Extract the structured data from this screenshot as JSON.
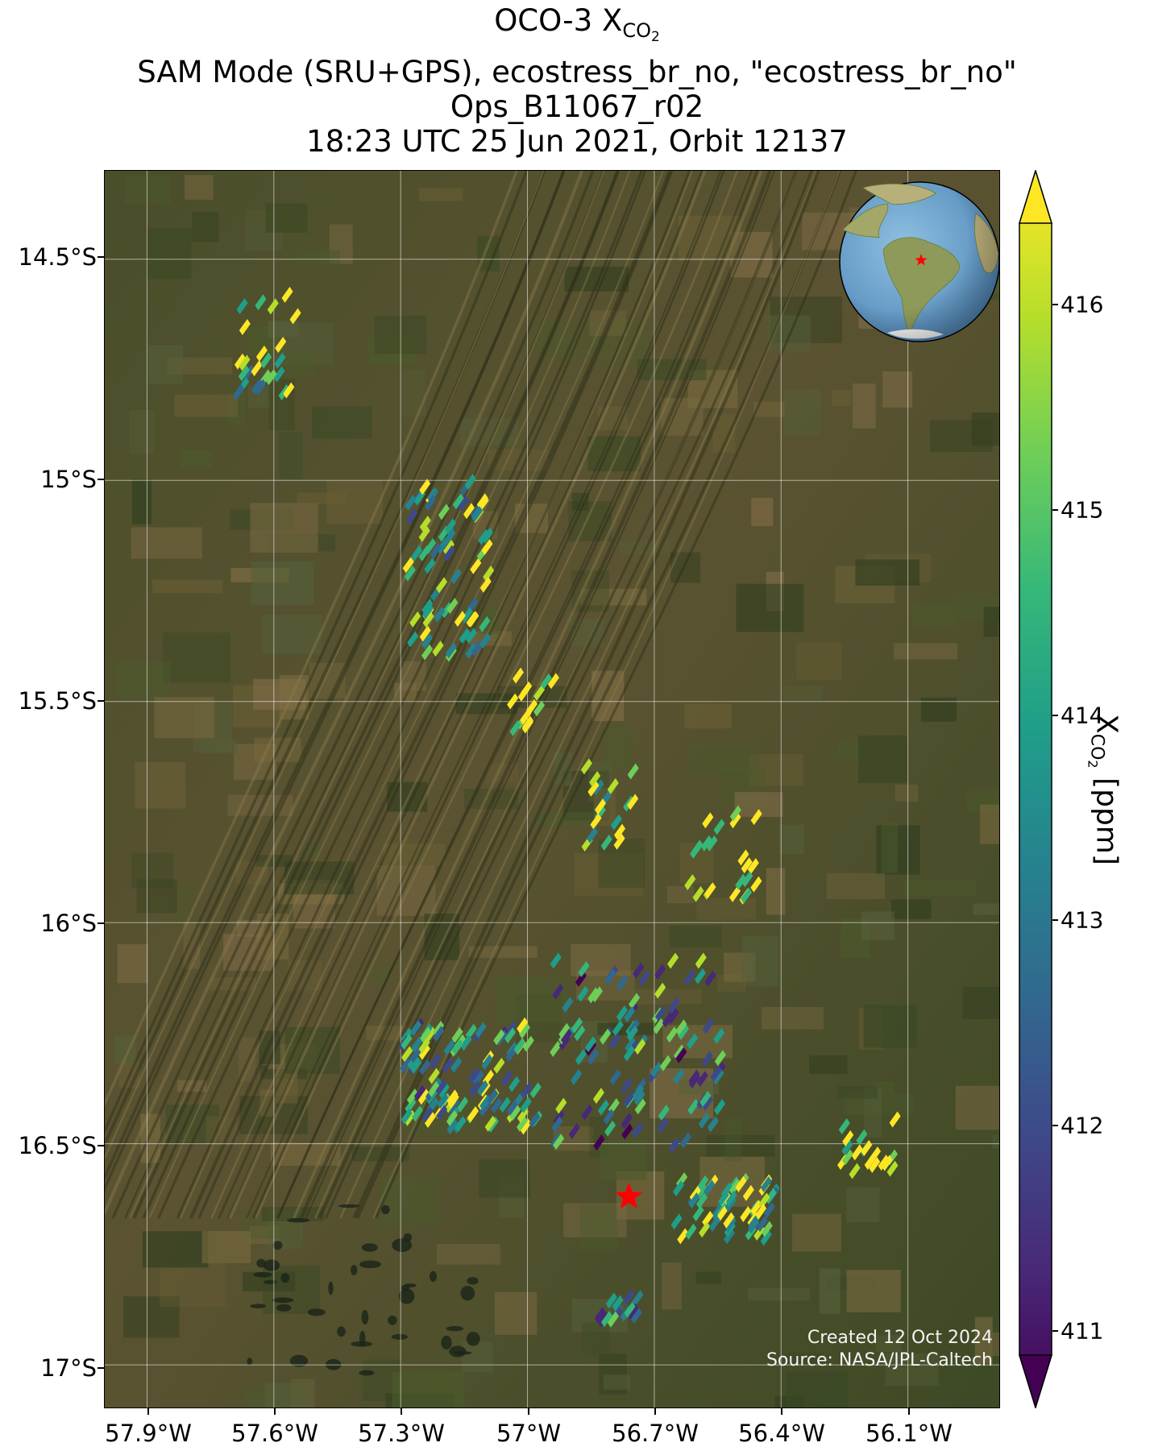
{
  "title": {
    "line1_prefix": "OCO-3 X",
    "line1_sub": "CO",
    "line1_subsub": "2",
    "line2": "SAM Mode (SRU+GPS), ecostress_br_no, \"ecostress_br_no\"",
    "line3": "Ops_B11067_r02",
    "line4": "18:23 UTC 25 Jun 2021, Orbit 12137"
  },
  "axes": {
    "y_ticks": [
      "14.5°S",
      "15°S",
      "15.5°S",
      "16°S",
      "16.5°S",
      "17°S"
    ],
    "x_ticks": [
      "57.9°W",
      "57.6°W",
      "57.3°W",
      "57°W",
      "56.7°W",
      "56.4°W",
      "56.1°W"
    ],
    "lat_range": [
      -14.3,
      -17.1
    ],
    "lon_range": [
      -58.0,
      -55.88
    ]
  },
  "colorbar": {
    "label_prefix": "X",
    "label_sub": "CO",
    "label_subsub": "2",
    "label_suffix": " [ppm]",
    "ticks": [
      "416",
      "415",
      "414",
      "413",
      "412",
      "411"
    ],
    "range": [
      410.7,
      416.5
    ],
    "colormap": "viridis",
    "extend": "both"
  },
  "target_marker": {
    "lat": -16.62,
    "lon": -56.76,
    "color": "#ff0000",
    "symbol": "star"
  },
  "inset_globe": {
    "marker_color": "#ff0000",
    "symbol": "star"
  },
  "credits": {
    "line1": "Created 12 Oct 2024",
    "line2": "Source: NASA/JPL-Caltech"
  },
  "basemap": {
    "colors": {
      "forest": "#3c4a22",
      "savanna": "#5a5530",
      "ridge": "#2a2c18",
      "wetland": "#2f4526"
    }
  },
  "chart_data": {
    "type": "map-scatter",
    "title": "OCO-3 XCO2",
    "colorbar_label": "XCO2 [ppm]",
    "value_range": [
      411,
      416
    ],
    "soundings_clusters": [
      {
        "lat": -14.7,
        "lon": -57.63,
        "mean_xco2": 414.5
      },
      {
        "lat": -15.2,
        "lon": -57.2,
        "mean_xco2": 414.3
      },
      {
        "lat": -15.5,
        "lon": -57.0,
        "mean_xco2": 415.6
      },
      {
        "lat": -15.75,
        "lon": -56.82,
        "mean_xco2": 415.0
      },
      {
        "lat": -15.85,
        "lon": -56.55,
        "mean_xco2": 416.0
      },
      {
        "lat": -16.35,
        "lon": -57.15,
        "mean_xco2": 413.9
      },
      {
        "lat": -16.3,
        "lon": -56.75,
        "mean_xco2": 413.2
      },
      {
        "lat": -16.65,
        "lon": -56.55,
        "mean_xco2": 414.8
      },
      {
        "lat": -16.5,
        "lon": -56.2,
        "mean_xco2": 415.5
      },
      {
        "lat": -16.88,
        "lon": -56.8,
        "mean_xco2": 413.5
      }
    ]
  }
}
